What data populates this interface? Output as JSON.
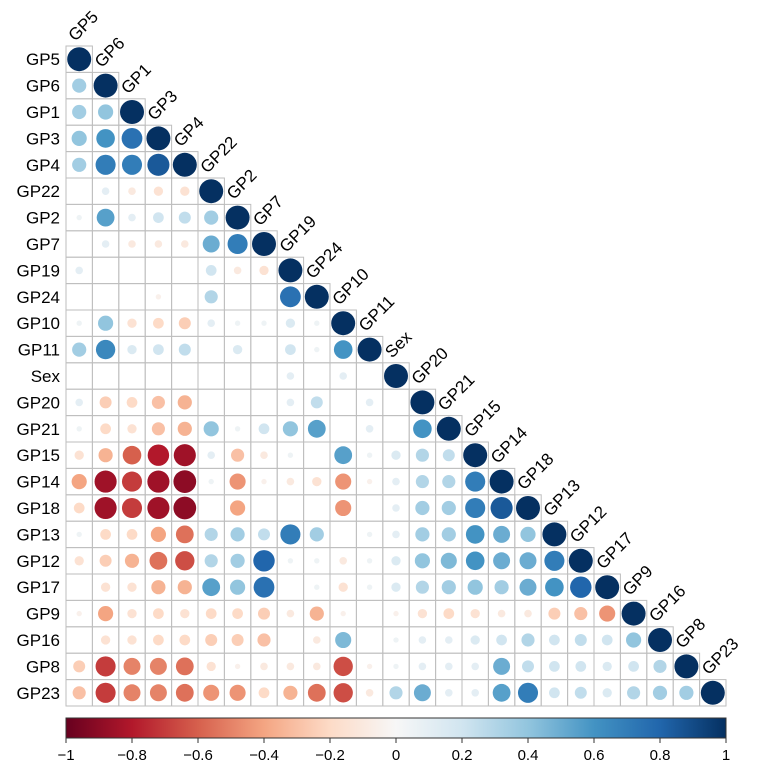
{
  "chart_data": {
    "type": "heatmap",
    "subtype": "correlation-matrix-lower-triangle-circles",
    "variables": [
      "GP5",
      "GP6",
      "GP1",
      "GP3",
      "GP4",
      "GP22",
      "GP2",
      "GP7",
      "GP19",
      "GP24",
      "GP10",
      "GP11",
      "Sex",
      "GP20",
      "GP21",
      "GP15",
      "GP14",
      "GP18",
      "GP13",
      "GP12",
      "GP17",
      "GP9",
      "GP16",
      "GP8",
      "GP23"
    ],
    "rows": [
      [
        1
      ],
      [
        0.35,
        1
      ],
      [
        0.35,
        0.4,
        1
      ],
      [
        0.4,
        0.6,
        0.75,
        1
      ],
      [
        0.35,
        0.7,
        0.7,
        0.85,
        1
      ],
      [
        0,
        0.1,
        -0.1,
        -0.15,
        -0.15,
        1
      ],
      [
        0.05,
        0.55,
        0.1,
        0.2,
        0.25,
        0.35,
        1
      ],
      [
        0,
        0.1,
        -0.1,
        -0.1,
        -0.1,
        0.5,
        0.7,
        1
      ],
      [
        0.1,
        0,
        0,
        0,
        0,
        0.2,
        -0.1,
        -0.15,
        1
      ],
      [
        0,
        0,
        0,
        -0.05,
        0,
        0.3,
        0,
        0,
        0.75,
        1
      ],
      [
        0.05,
        0.4,
        -0.15,
        -0.2,
        -0.25,
        0.1,
        0.05,
        0.05,
        0.15,
        0.05,
        1
      ],
      [
        0.35,
        0.65,
        0.15,
        0.2,
        0.25,
        0,
        0.15,
        0,
        0.2,
        0.05,
        0.6,
        1
      ],
      [
        0,
        0,
        0,
        0,
        0,
        0,
        0,
        0,
        0.1,
        0,
        0.1,
        0,
        1
      ],
      [
        0.1,
        -0.25,
        -0.2,
        -0.3,
        -0.35,
        0,
        0,
        0,
        0.1,
        0.25,
        0,
        0.1,
        0,
        1
      ],
      [
        0.05,
        -0.2,
        -0.15,
        -0.3,
        -0.35,
        0.4,
        0.05,
        0.2,
        0.4,
        0.55,
        0,
        0.1,
        0,
        0.6,
        1
      ],
      [
        -0.15,
        -0.35,
        -0.6,
        -0.8,
        -0.85,
        0.1,
        -0.3,
        -0.1,
        0.05,
        0,
        0.55,
        0.05,
        0.15,
        0.3,
        0.25,
        1
      ],
      [
        -0.4,
        -0.85,
        -0.7,
        -0.85,
        -0.9,
        0.05,
        -0.45,
        -0.05,
        -0.1,
        -0.15,
        -0.45,
        -0.05,
        0.1,
        0.3,
        0.3,
        0.7,
        1
      ],
      [
        -0.2,
        -0.85,
        -0.7,
        -0.85,
        -0.9,
        0,
        -0.4,
        0,
        0,
        0,
        -0.45,
        0,
        0.1,
        0.35,
        0.35,
        0.7,
        0.85,
        1
      ],
      [
        0.05,
        -0.2,
        -0.2,
        -0.4,
        -0.55,
        0.3,
        0.35,
        0.25,
        0.7,
        0.35,
        0,
        0.05,
        0.1,
        0.35,
        0.35,
        0.6,
        0.5,
        0.4,
        1
      ],
      [
        -0.15,
        -0.25,
        -0.35,
        -0.55,
        -0.65,
        0.3,
        0.35,
        0.8,
        0.05,
        0.05,
        -0.1,
        0.05,
        0.15,
        0.4,
        0.45,
        0.6,
        0.5,
        0.5,
        0.7,
        1
      ],
      [
        0,
        -0.15,
        -0.15,
        -0.35,
        -0.35,
        0.55,
        0.4,
        0.75,
        0,
        0.05,
        -0.15,
        0.05,
        0.15,
        0.3,
        0.35,
        0.4,
        0.35,
        0.5,
        0.6,
        0.8,
        1
      ],
      [
        -0.05,
        -0.4,
        -0.15,
        -0.2,
        -0.15,
        -0.2,
        -0.2,
        -0.25,
        -0.1,
        -0.35,
        -0.05,
        0,
        -0.05,
        -0.15,
        -0.2,
        -0.15,
        -0.1,
        -0.1,
        -0.25,
        -0.3,
        -0.45,
        1
      ],
      [
        0,
        -0.15,
        -0.15,
        -0.2,
        -0.2,
        -0.25,
        -0.25,
        -0.3,
        0,
        -0.1,
        0.45,
        0,
        0.05,
        0.1,
        0.1,
        0.15,
        0.2,
        0.3,
        0.2,
        0.25,
        0.2,
        0.4,
        1
      ],
      [
        -0.25,
        -0.7,
        -0.5,
        -0.5,
        -0.55,
        -0.15,
        -0.05,
        -0.1,
        -0.1,
        -0.1,
        -0.65,
        -0.05,
        0.05,
        0.1,
        0.1,
        0.1,
        0.5,
        0.25,
        0.2,
        0.2,
        0.15,
        0.2,
        0.3,
        1
      ],
      [
        -0.3,
        -0.7,
        -0.5,
        -0.5,
        -0.55,
        -0.45,
        -0.45,
        -0.2,
        -0.35,
        -0.55,
        -0.65,
        -0.1,
        0.3,
        0.5,
        0.1,
        0.1,
        0.55,
        0.7,
        0.2,
        0.25,
        0.15,
        0.3,
        0.35,
        0.35,
        1
      ]
    ],
    "colorbar_ticks": [
      "−1",
      "−0.8",
      "−0.6",
      "−0.4",
      "−0.2",
      "0",
      "0.2",
      "0.4",
      "0.6",
      "0.8",
      "1"
    ],
    "colorbar_range": [
      -1,
      1
    ],
    "colors": {
      "negative_extreme": "#67001f",
      "positive_extreme": "#053061",
      "neutral": "#f7f7f7",
      "grid": "#bebebe"
    },
    "title": "",
    "legend_placement": "bottom"
  }
}
